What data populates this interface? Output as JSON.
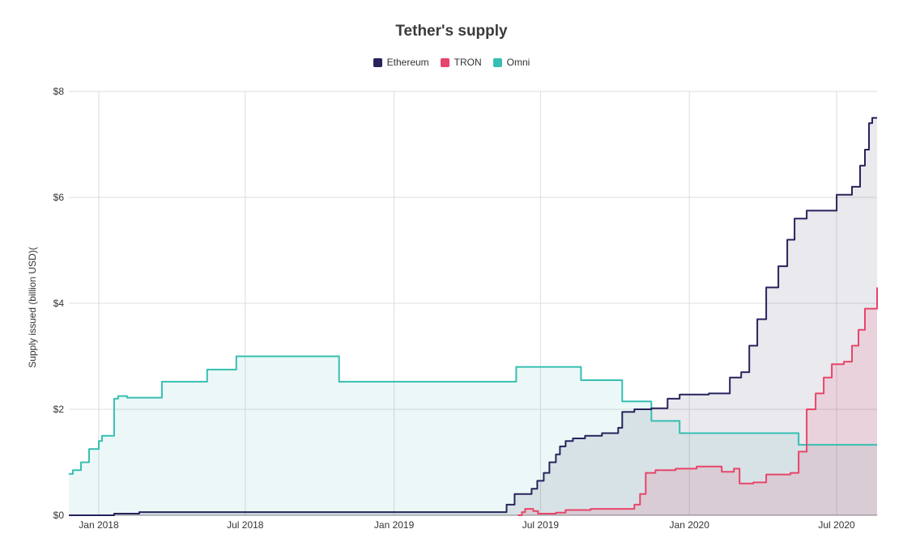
{
  "chart_data": {
    "type": "area",
    "title": "Tether's supply",
    "xlabel": "",
    "ylabel": "Supply issued (billion USD)(",
    "ylim": [
      0,
      8
    ],
    "xlim": [
      "2017-11-25",
      "2020-08-20"
    ],
    "grid": true,
    "legend_position": "top-center",
    "x_ticks": [
      {
        "label": "Jan 2018",
        "date": "2018-01-01"
      },
      {
        "label": "Jul 2018",
        "date": "2018-07-01"
      },
      {
        "label": "Jan 2019",
        "date": "2019-01-01"
      },
      {
        "label": "Jul 2019",
        "date": "2019-07-01"
      },
      {
        "label": "Jan 2020",
        "date": "2020-01-01"
      },
      {
        "label": "Jul 2020",
        "date": "2020-07-01"
      }
    ],
    "y_ticks": [
      {
        "label": "$0",
        "value": 0
      },
      {
        "label": "$2",
        "value": 2
      },
      {
        "label": "$4",
        "value": 4
      },
      {
        "label": "$6",
        "value": 6
      },
      {
        "label": "$8",
        "value": 8
      }
    ],
    "series": [
      {
        "name": "Ethereum",
        "color": "#27235c",
        "fill": "rgba(39,35,92,0.10)",
        "points": [
          [
            "2017-11-25",
            0.0
          ],
          [
            "2018-01-20",
            0.03
          ],
          [
            "2018-02-20",
            0.06
          ],
          [
            "2019-05-10",
            0.06
          ],
          [
            "2019-05-20",
            0.2
          ],
          [
            "2019-05-30",
            0.4
          ],
          [
            "2019-06-20",
            0.5
          ],
          [
            "2019-06-27",
            0.65
          ],
          [
            "2019-07-05",
            0.8
          ],
          [
            "2019-07-12",
            1.0
          ],
          [
            "2019-07-20",
            1.15
          ],
          [
            "2019-07-25",
            1.3
          ],
          [
            "2019-08-01",
            1.4
          ],
          [
            "2019-08-10",
            1.45
          ],
          [
            "2019-08-25",
            1.5
          ],
          [
            "2019-09-15",
            1.55
          ],
          [
            "2019-10-05",
            1.65
          ],
          [
            "2019-10-10",
            1.95
          ],
          [
            "2019-10-25",
            2.0
          ],
          [
            "2019-11-15",
            2.02
          ],
          [
            "2019-12-05",
            2.2
          ],
          [
            "2019-12-20",
            2.28
          ],
          [
            "2020-01-25",
            2.3
          ],
          [
            "2020-02-20",
            2.6
          ],
          [
            "2020-03-05",
            2.7
          ],
          [
            "2020-03-15",
            3.2
          ],
          [
            "2020-03-25",
            3.7
          ],
          [
            "2020-04-05",
            4.3
          ],
          [
            "2020-04-20",
            4.7
          ],
          [
            "2020-05-01",
            5.2
          ],
          [
            "2020-05-10",
            5.6
          ],
          [
            "2020-05-25",
            5.75
          ],
          [
            "2020-06-25",
            5.75
          ],
          [
            "2020-07-01",
            6.05
          ],
          [
            "2020-07-20",
            6.2
          ],
          [
            "2020-07-30",
            6.6
          ],
          [
            "2020-08-05",
            6.9
          ],
          [
            "2020-08-10",
            7.4
          ],
          [
            "2020-08-14",
            7.5
          ],
          [
            "2020-08-20",
            7.5
          ]
        ]
      },
      {
        "name": "TRON",
        "color": "#e8456a",
        "fill": "rgba(232,69,106,0.14)",
        "points": [
          [
            "2019-06-03",
            0.0
          ],
          [
            "2019-06-08",
            0.06
          ],
          [
            "2019-06-12",
            0.12
          ],
          [
            "2019-06-22",
            0.08
          ],
          [
            "2019-06-28",
            0.03
          ],
          [
            "2019-07-20",
            0.05
          ],
          [
            "2019-08-01",
            0.1
          ],
          [
            "2019-09-01",
            0.12
          ],
          [
            "2019-10-15",
            0.12
          ],
          [
            "2019-10-25",
            0.2
          ],
          [
            "2019-11-01",
            0.4
          ],
          [
            "2019-11-08",
            0.8
          ],
          [
            "2019-11-20",
            0.85
          ],
          [
            "2019-12-15",
            0.88
          ],
          [
            "2020-01-10",
            0.92
          ],
          [
            "2020-02-01",
            0.92
          ],
          [
            "2020-02-10",
            0.82
          ],
          [
            "2020-02-25",
            0.88
          ],
          [
            "2020-03-03",
            0.6
          ],
          [
            "2020-03-20",
            0.62
          ],
          [
            "2020-04-05",
            0.77
          ],
          [
            "2020-05-05",
            0.8
          ],
          [
            "2020-05-15",
            1.2
          ],
          [
            "2020-05-25",
            2.0
          ],
          [
            "2020-06-05",
            2.3
          ],
          [
            "2020-06-15",
            2.6
          ],
          [
            "2020-06-25",
            2.85
          ],
          [
            "2020-07-10",
            2.9
          ],
          [
            "2020-07-20",
            3.2
          ],
          [
            "2020-07-28",
            3.5
          ],
          [
            "2020-08-05",
            3.9
          ],
          [
            "2020-08-14",
            3.9
          ],
          [
            "2020-08-20",
            4.3
          ]
        ]
      },
      {
        "name": "Omni",
        "color": "#36bfb1",
        "fill": "rgba(54,191,177,0.10)",
        "points": [
          [
            "2017-11-25",
            0.78
          ],
          [
            "2017-11-30",
            0.85
          ],
          [
            "2017-12-10",
            1.0
          ],
          [
            "2017-12-20",
            1.25
          ],
          [
            "2018-01-01",
            1.4
          ],
          [
            "2018-01-05",
            1.5
          ],
          [
            "2018-01-20",
            2.2
          ],
          [
            "2018-01-25",
            2.25
          ],
          [
            "2018-02-05",
            2.22
          ],
          [
            "2018-03-20",
            2.52
          ],
          [
            "2018-05-15",
            2.75
          ],
          [
            "2018-06-20",
            3.0
          ],
          [
            "2018-10-25",
            2.52
          ],
          [
            "2019-06-01",
            2.8
          ],
          [
            "2019-08-20",
            2.55
          ],
          [
            "2019-10-10",
            2.15
          ],
          [
            "2019-11-15",
            1.78
          ],
          [
            "2019-12-20",
            1.55
          ],
          [
            "2020-05-15",
            1.33
          ],
          [
            "2020-08-20",
            1.33
          ]
        ]
      }
    ]
  }
}
